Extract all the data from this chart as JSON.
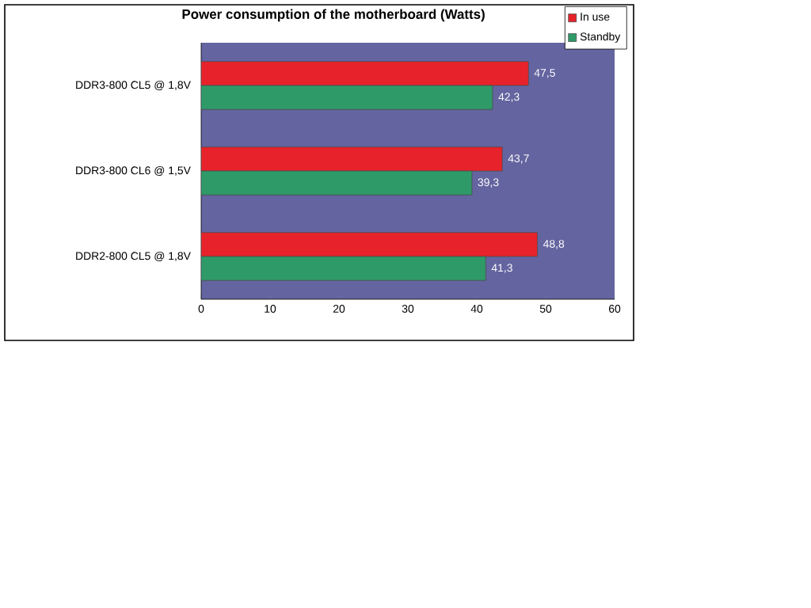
{
  "chart_data": {
    "type": "bar",
    "orientation": "horizontal",
    "title": "Power consumption of the motherboard  (Watts)",
    "categories": [
      "DDR3-800 CL5 @ 1,8V",
      "DDR3-800 CL6 @ 1,5V",
      "DDR2-800 CL5 @ 1,8V"
    ],
    "series": [
      {
        "name": "In use",
        "color": "#e8222a",
        "values": [
          47.5,
          43.7,
          48.8
        ],
        "value_labels": [
          "47,5",
          "43,7",
          "48,8"
        ]
      },
      {
        "name": "Standby",
        "color": "#2e9a68",
        "values": [
          42.3,
          39.3,
          41.3
        ],
        "value_labels": [
          "42,3",
          "39,3",
          "41,3"
        ]
      }
    ],
    "xlim": [
      0,
      60
    ],
    "xticks": [
      0,
      10,
      20,
      30,
      40,
      50,
      60
    ],
    "legend": "top right",
    "grid": false
  }
}
